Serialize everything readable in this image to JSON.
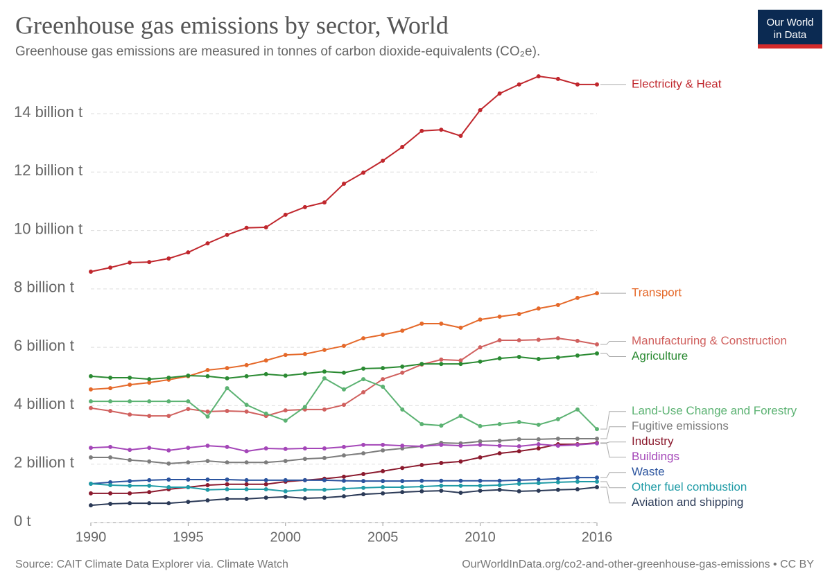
{
  "chart_data": {
    "type": "line",
    "title": "Greenhouse gas emissions by sector, World",
    "subtitle": "Greenhouse gas emissions are measured in tonnes of carbon dioxide-equivalents (CO₂e).",
    "source": "Source: CAIT Climate Data Explorer via. Climate Watch",
    "note": "OurWorldInData.org/co2-and-other-greenhouse-gas-emissions • CC BY",
    "logo": [
      "Our World",
      "in Data"
    ],
    "x": [
      1990,
      1991,
      1992,
      1993,
      1994,
      1995,
      1996,
      1997,
      1998,
      1999,
      2000,
      2001,
      2002,
      2003,
      2004,
      2005,
      2006,
      2007,
      2008,
      2009,
      2010,
      2011,
      2012,
      2013,
      2014,
      2015,
      2016
    ],
    "xlim": [
      1990,
      2016
    ],
    "xticks": [
      1990,
      1995,
      2000,
      2005,
      2010,
      2016
    ],
    "ylim": [
      0,
      15500000000.0
    ],
    "yticks": [
      {
        "value": 0,
        "label": "0 t"
      },
      {
        "value": 2000000000.0,
        "label": "2 billion t"
      },
      {
        "value": 4000000000.0,
        "label": "4 billion t"
      },
      {
        "value": 6000000000.0,
        "label": "6 billion t"
      },
      {
        "value": 8000000000.0,
        "label": "8 billion t"
      },
      {
        "value": 10000000000.0,
        "label": "10 billion t"
      },
      {
        "value": 12000000000.0,
        "label": "12 billion t"
      },
      {
        "value": 14000000000.0,
        "label": "14 billion t"
      }
    ],
    "grid": true,
    "series": [
      {
        "name": "Electricity & Heat",
        "color": "#c0272d",
        "values": [
          8590000000.0,
          8730000000.0,
          8900000000.0,
          8920000000.0,
          9040000000.0,
          9250000000.0,
          9560000000.0,
          9850000000.0,
          10090000000.0,
          10110000000.0,
          10540000000.0,
          10800000000.0,
          10960000000.0,
          11600000000.0,
          11980000000.0,
          12390000000.0,
          12860000000.0,
          13410000000.0,
          13450000000.0,
          13240000000.0,
          14120000000.0,
          14690000000.0,
          15000000000.0,
          15280000000.0,
          15190000000.0,
          15000000000.0,
          15000000000.0
        ]
      },
      {
        "name": "Transport",
        "color": "#e5692a",
        "values": [
          4560000000.0,
          4600000000.0,
          4720000000.0,
          4790000000.0,
          4890000000.0,
          5010000000.0,
          5220000000.0,
          5290000000.0,
          5390000000.0,
          5550000000.0,
          5740000000.0,
          5770000000.0,
          5910000000.0,
          6050000000.0,
          6310000000.0,
          6430000000.0,
          6570000000.0,
          6810000000.0,
          6810000000.0,
          6670000000.0,
          6950000000.0,
          7050000000.0,
          7140000000.0,
          7330000000.0,
          7450000000.0,
          7690000000.0,
          7850000000.0
        ]
      },
      {
        "name": "Manufacturing & Construction",
        "color": "#d0605e",
        "values": [
          3920000000.0,
          3820000000.0,
          3700000000.0,
          3650000000.0,
          3650000000.0,
          3890000000.0,
          3800000000.0,
          3820000000.0,
          3800000000.0,
          3650000000.0,
          3840000000.0,
          3870000000.0,
          3870000000.0,
          4030000000.0,
          4460000000.0,
          4910000000.0,
          5130000000.0,
          5410000000.0,
          5580000000.0,
          5550000000.0,
          6000000000.0,
          6240000000.0,
          6240000000.0,
          6260000000.0,
          6310000000.0,
          6220000000.0,
          6100000000.0
        ]
      },
      {
        "name": "Agriculture",
        "color": "#2a8a32",
        "values": [
          5010000000.0,
          4960000000.0,
          4960000000.0,
          4910000000.0,
          4960000000.0,
          5030000000.0,
          5010000000.0,
          4940000000.0,
          5010000000.0,
          5080000000.0,
          5030000000.0,
          5100000000.0,
          5170000000.0,
          5130000000.0,
          5270000000.0,
          5290000000.0,
          5340000000.0,
          5430000000.0,
          5430000000.0,
          5430000000.0,
          5510000000.0,
          5620000000.0,
          5670000000.0,
          5600000000.0,
          5650000000.0,
          5720000000.0,
          5790000000.0
        ]
      },
      {
        "name": "Land-Use Change and Forestry",
        "color": "#5bb272",
        "values": [
          4150000000.0,
          4150000000.0,
          4150000000.0,
          4150000000.0,
          4150000000.0,
          4150000000.0,
          3630000000.0,
          4600000000.0,
          4030000000.0,
          3730000000.0,
          3490000000.0,
          3960000000.0,
          4940000000.0,
          4560000000.0,
          4910000000.0,
          4650000000.0,
          3870000000.0,
          3370000000.0,
          3320000000.0,
          3650000000.0,
          3300000000.0,
          3370000000.0,
          3440000000.0,
          3350000000.0,
          3540000000.0,
          3870000000.0,
          3200000000.0
        ]
      },
      {
        "name": "Fugitive emissions",
        "color": "#7d7d7d",
        "values": [
          2230000000.0,
          2230000000.0,
          2140000000.0,
          2090000000.0,
          2020000000.0,
          2060000000.0,
          2110000000.0,
          2060000000.0,
          2060000000.0,
          2060000000.0,
          2110000000.0,
          2180000000.0,
          2210000000.0,
          2300000000.0,
          2370000000.0,
          2470000000.0,
          2540000000.0,
          2610000000.0,
          2730000000.0,
          2710000000.0,
          2780000000.0,
          2800000000.0,
          2850000000.0,
          2850000000.0,
          2870000000.0,
          2870000000.0,
          2870000000.0
        ]
      },
      {
        "name": "Industry",
        "color": "#8b1a2e",
        "values": [
          1000000000.0,
          1000000000.0,
          1000000000.0,
          1040000000.0,
          1140000000.0,
          1210000000.0,
          1280000000.0,
          1310000000.0,
          1310000000.0,
          1310000000.0,
          1400000000.0,
          1450000000.0,
          1500000000.0,
          1570000000.0,
          1660000000.0,
          1760000000.0,
          1870000000.0,
          1970000000.0,
          2040000000.0,
          2090000000.0,
          2230000000.0,
          2370000000.0,
          2440000000.0,
          2540000000.0,
          2680000000.0,
          2680000000.0,
          2730000000.0
        ]
      },
      {
        "name": "Buildings",
        "color": "#a446b8",
        "values": [
          2560000000.0,
          2590000000.0,
          2490000000.0,
          2560000000.0,
          2470000000.0,
          2560000000.0,
          2630000000.0,
          2590000000.0,
          2440000000.0,
          2540000000.0,
          2520000000.0,
          2540000000.0,
          2540000000.0,
          2590000000.0,
          2660000000.0,
          2660000000.0,
          2630000000.0,
          2610000000.0,
          2660000000.0,
          2630000000.0,
          2660000000.0,
          2630000000.0,
          2610000000.0,
          2680000000.0,
          2630000000.0,
          2660000000.0,
          2710000000.0
        ]
      },
      {
        "name": "Waste",
        "color": "#2a539e",
        "values": [
          1330000000.0,
          1380000000.0,
          1420000000.0,
          1450000000.0,
          1470000000.0,
          1470000000.0,
          1470000000.0,
          1470000000.0,
          1450000000.0,
          1450000000.0,
          1450000000.0,
          1450000000.0,
          1450000000.0,
          1430000000.0,
          1420000000.0,
          1420000000.0,
          1420000000.0,
          1430000000.0,
          1430000000.0,
          1430000000.0,
          1430000000.0,
          1430000000.0,
          1450000000.0,
          1470000000.0,
          1500000000.0,
          1540000000.0,
          1540000000.0
        ]
      },
      {
        "name": "Other fuel combustion",
        "color": "#1f9ba6",
        "values": [
          1330000000.0,
          1280000000.0,
          1260000000.0,
          1260000000.0,
          1210000000.0,
          1210000000.0,
          1120000000.0,
          1140000000.0,
          1140000000.0,
          1140000000.0,
          1070000000.0,
          1120000000.0,
          1120000000.0,
          1160000000.0,
          1190000000.0,
          1210000000.0,
          1210000000.0,
          1230000000.0,
          1260000000.0,
          1260000000.0,
          1260000000.0,
          1280000000.0,
          1330000000.0,
          1350000000.0,
          1380000000.0,
          1400000000.0,
          1400000000.0
        ]
      },
      {
        "name": "Aviation and shipping",
        "color": "#2b3a57",
        "values": [
          590000000.0,
          640000000.0,
          660000000.0,
          660000000.0,
          660000000.0,
          710000000.0,
          760000000.0,
          810000000.0,
          810000000.0,
          850000000.0,
          880000000.0,
          830000000.0,
          850000000.0,
          900000000.0,
          970000000.0,
          1000000000.0,
          1040000000.0,
          1070000000.0,
          1090000000.0,
          1020000000.0,
          1090000000.0,
          1120000000.0,
          1070000000.0,
          1090000000.0,
          1120000000.0,
          1140000000.0,
          1210000000.0
        ]
      }
    ]
  }
}
